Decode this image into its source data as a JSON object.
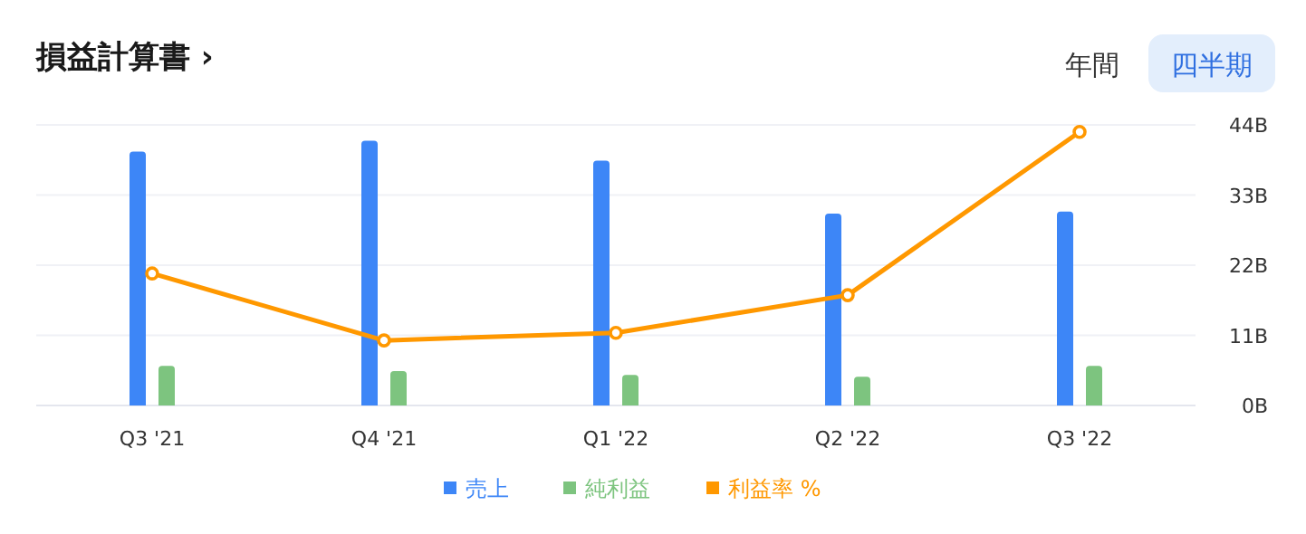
{
  "chart_data": {
    "type": "bar",
    "title": "損益計算書 ›",
    "annotations": [
      "年間",
      "四半期"
    ],
    "categories": [
      "Q3 '21",
      "Q4 '21",
      "Q1 '22",
      "Q2 '22",
      "Q3 '22"
    ],
    "series": [
      {
        "name": "売上",
        "color": "#3d86f7",
        "values": [
          39.8,
          41.5,
          38.4,
          30.1,
          30.4
        ]
      },
      {
        "name": "純利益",
        "color": "#7dc47f",
        "values": [
          6.2,
          5.4,
          4.8,
          4.5,
          6.2
        ]
      },
      {
        "name": "利益率 %",
        "type": "line",
        "color": "#ff9800",
        "marker": "circle",
        "values": [
          20.7,
          10.2,
          11.4,
          17.3,
          42.9
        ]
      }
    ],
    "ylim": [
      0,
      44
    ],
    "yticks": [
      {
        "value": 0,
        "label": "0B"
      },
      {
        "value": 11,
        "label": "11B"
      },
      {
        "value": 22,
        "label": "22B"
      },
      {
        "value": 33,
        "label": "33B"
      },
      {
        "value": 44,
        "label": "44B"
      }
    ],
    "grid": "y",
    "legend": "bottom"
  }
}
